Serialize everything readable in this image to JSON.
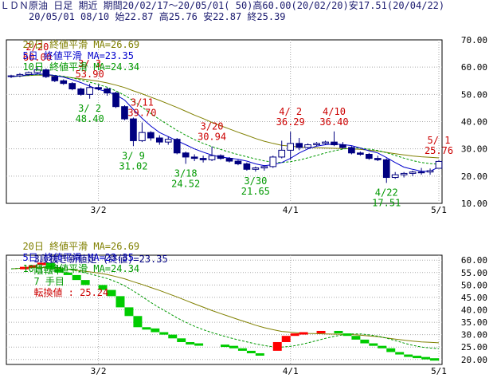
{
  "header": {
    "line1": "ＬＤＮ原油 日足 期近 期間20/02/17～20/05/01( 50)高60.00(20/02/20)安17.51(20/04/22)",
    "line2": "20/05/01 08/10 始22.87 高25.76 安22.87 終25.39"
  },
  "legend": {
    "ma20": "20日 終値平滑 MA=26.69",
    "ma5": "5日 終値平滑 MA=23.35",
    "ma10": "10日 終値平滑 MA=24.34"
  },
  "lower_info": {
    "label": "3段抜き新値足 (終値)=23.35",
    "state": "陰転中",
    "count": "7 手目",
    "reversal": "転換値 : 25.24"
  },
  "colors": {
    "up": "#ffffff",
    "down": "#000080",
    "ma20": "#808000",
    "ma5": "#0000cc",
    "ma10": "#009900",
    "high_label": "#cc0000",
    "low_label": "#009900",
    "kagi_up": "#ff0000",
    "kagi_down": "#00cc00",
    "grid": "#aaaaaa"
  },
  "chart_data": [
    {
      "type": "candlestick",
      "ylim": [
        10,
        70
      ],
      "yticks": [
        "70.00",
        "60.00",
        "50.00",
        "40.00",
        "30.00",
        "20.00",
        "10.00"
      ],
      "ytick_values": [
        70,
        60,
        50,
        40,
        30,
        20,
        10
      ],
      "xticks": [
        {
          "label": "3/2",
          "index": 10
        },
        {
          "label": "4/1",
          "index": 32
        },
        {
          "label": "5/1",
          "index": 49
        }
      ],
      "candles": [
        {
          "o": 56.5,
          "h": 57.2,
          "l": 56.0,
          "c": 56.8
        },
        {
          "o": 56.8,
          "h": 57.8,
          "l": 56.3,
          "c": 57.3
        },
        {
          "o": 57.3,
          "h": 58.4,
          "l": 56.8,
          "c": 58.0
        },
        {
          "o": 58.0,
          "h": 60.0,
          "l": 57.5,
          "c": 59.0
        },
        {
          "o": 59.0,
          "h": 59.5,
          "l": 56.0,
          "c": 56.5
        },
        {
          "o": 56.5,
          "h": 57.0,
          "l": 54.5,
          "c": 55.0
        },
        {
          "o": 55.0,
          "h": 55.5,
          "l": 53.5,
          "c": 54.0
        },
        {
          "o": 54.0,
          "h": 54.5,
          "l": 51.5,
          "c": 52.0
        },
        {
          "o": 52.0,
          "h": 52.5,
          "l": 49.5,
          "c": 50.0
        },
        {
          "o": 50.0,
          "h": 53.9,
          "l": 48.4,
          "c": 52.5
        },
        {
          "o": 52.5,
          "h": 53.5,
          "l": 51.5,
          "c": 52.0
        },
        {
          "o": 52.0,
          "h": 52.5,
          "l": 49.5,
          "c": 50.5
        },
        {
          "o": 50.5,
          "h": 51.0,
          "l": 45.0,
          "c": 45.5
        },
        {
          "o": 45.5,
          "h": 46.0,
          "l": 40.5,
          "c": 41.0
        },
        {
          "o": 41.0,
          "h": 41.5,
          "l": 31.0,
          "c": 33.0
        },
        {
          "o": 33.0,
          "h": 39.7,
          "l": 32.5,
          "c": 36.0
        },
        {
          "o": 36.0,
          "h": 36.5,
          "l": 33.0,
          "c": 34.0
        },
        {
          "o": 34.0,
          "h": 35.0,
          "l": 31.5,
          "c": 32.5
        },
        {
          "o": 32.5,
          "h": 34.5,
          "l": 31.5,
          "c": 33.5
        },
        {
          "o": 33.5,
          "h": 34.0,
          "l": 28.0,
          "c": 28.5
        },
        {
          "o": 28.5,
          "h": 29.0,
          "l": 24.5,
          "c": 27.0
        },
        {
          "o": 27.0,
          "h": 28.0,
          "l": 25.5,
          "c": 26.5
        },
        {
          "o": 26.5,
          "h": 27.5,
          "l": 25.0,
          "c": 26.0
        },
        {
          "o": 26.0,
          "h": 30.9,
          "l": 25.5,
          "c": 27.5
        },
        {
          "o": 27.5,
          "h": 28.0,
          "l": 26.0,
          "c": 26.5
        },
        {
          "o": 26.5,
          "h": 27.0,
          "l": 25.0,
          "c": 25.5
        },
        {
          "o": 25.5,
          "h": 26.0,
          "l": 24.0,
          "c": 24.5
        },
        {
          "o": 24.5,
          "h": 25.0,
          "l": 22.0,
          "c": 22.5
        },
        {
          "o": 22.5,
          "h": 23.5,
          "l": 21.65,
          "c": 23.0
        },
        {
          "o": 23.0,
          "h": 24.0,
          "l": 22.0,
          "c": 23.5
        },
        {
          "o": 23.5,
          "h": 27.5,
          "l": 23.0,
          "c": 27.0
        },
        {
          "o": 27.0,
          "h": 33.0,
          "l": 26.5,
          "c": 29.5
        },
        {
          "o": 29.5,
          "h": 36.29,
          "l": 26.0,
          "c": 32.0
        },
        {
          "o": 32.0,
          "h": 34.0,
          "l": 29.5,
          "c": 30.5
        },
        {
          "o": 30.5,
          "h": 32.0,
          "l": 30.0,
          "c": 31.5
        },
        {
          "o": 31.5,
          "h": 32.5,
          "l": 31.0,
          "c": 32.0
        },
        {
          "o": 32.0,
          "h": 33.0,
          "l": 31.5,
          "c": 32.5
        },
        {
          "o": 32.5,
          "h": 36.4,
          "l": 31.0,
          "c": 31.5
        },
        {
          "o": 31.5,
          "h": 32.5,
          "l": 30.0,
          "c": 30.5
        },
        {
          "o": 30.5,
          "h": 31.0,
          "l": 28.0,
          "c": 28.5
        },
        {
          "o": 28.5,
          "h": 29.0,
          "l": 27.5,
          "c": 28.0
        },
        {
          "o": 28.0,
          "h": 28.5,
          "l": 26.0,
          "c": 26.5
        },
        {
          "o": 26.5,
          "h": 27.5,
          "l": 25.5,
          "c": 26.0
        },
        {
          "o": 26.0,
          "h": 26.5,
          "l": 17.51,
          "c": 19.5
        },
        {
          "o": 19.5,
          "h": 21.5,
          "l": 19.0,
          "c": 20.5
        },
        {
          "o": 20.5,
          "h": 21.5,
          "l": 19.5,
          "c": 21.0
        },
        {
          "o": 21.0,
          "h": 22.0,
          "l": 20.0,
          "c": 21.5
        },
        {
          "o": 21.5,
          "h": 23.0,
          "l": 20.5,
          "c": 21.5
        },
        {
          "o": 21.5,
          "h": 22.8,
          "l": 20.5,
          "c": 22.0
        },
        {
          "o": 22.87,
          "h": 25.76,
          "l": 22.87,
          "c": 25.39
        }
      ],
      "ma20": [
        56.5,
        56.7,
        56.9,
        57.1,
        57.0,
        56.8,
        56.5,
        56.1,
        55.7,
        55.3,
        54.8,
        54.2,
        53.4,
        52.5,
        51.3,
        50.2,
        49.0,
        47.8,
        46.5,
        45.2,
        43.8,
        42.4,
        41.1,
        39.7,
        38.5,
        37.3,
        36.1,
        35.0,
        33.8,
        32.8,
        32.0,
        31.3,
        31.0,
        30.7,
        30.5,
        30.4,
        30.3,
        30.2,
        30.1,
        30.0,
        29.8,
        29.5,
        29.2,
        28.7,
        28.2,
        27.8,
        27.4,
        27.1,
        26.9,
        26.69
      ],
      "ma5": [
        56.5,
        56.8,
        57.2,
        57.5,
        57.4,
        56.9,
        56.3,
        55.4,
        54.3,
        53.0,
        51.8,
        51.0,
        49.8,
        47.9,
        44.5,
        41.2,
        38.4,
        36.0,
        34.5,
        33.0,
        31.5,
        30.0,
        28.8,
        27.7,
        27.0,
        26.6,
        26.2,
        25.5,
        24.5,
        23.8,
        24.2,
        25.0,
        26.5,
        28.5,
        30.0,
        31.0,
        31.5,
        31.8,
        31.6,
        31.2,
        30.3,
        29.3,
        28.5,
        26.8,
        25.0,
        23.3,
        22.5,
        21.8,
        21.8,
        23.35
      ],
      "ma10": [
        56.5,
        56.7,
        57.0,
        57.2,
        57.2,
        57.0,
        56.6,
        56.0,
        55.3,
        54.5,
        53.6,
        52.6,
        51.3,
        49.7,
        47.6,
        45.3,
        43.0,
        40.8,
        38.8,
        36.8,
        35.0,
        33.4,
        32.0,
        30.8,
        29.8,
        28.8,
        27.9,
        27.1,
        26.3,
        25.6,
        25.1,
        25.0,
        25.3,
        25.9,
        26.7,
        27.6,
        28.5,
        29.3,
        29.9,
        30.3,
        30.3,
        29.9,
        29.4,
        28.6,
        27.6,
        26.6,
        25.7,
        25.0,
        24.6,
        24.34
      ],
      "annotations": [
        {
          "index": 3,
          "date": "2/20",
          "value": "60.00",
          "kind": "high"
        },
        {
          "index": 9,
          "date": "3/ 3",
          "value": "53.90",
          "kind": "high"
        },
        {
          "index": 9,
          "date": "3/ 2",
          "value": "48.40",
          "kind": "low"
        },
        {
          "index": 15,
          "date": "3/11",
          "value": "39.70",
          "kind": "high"
        },
        {
          "index": 14,
          "date": "3/ 9",
          "value": "31.02",
          "kind": "low"
        },
        {
          "index": 20,
          "date": "3/18",
          "value": "24.52",
          "kind": "low"
        },
        {
          "index": 23,
          "date": "3/20",
          "value": "30.94",
          "kind": "high"
        },
        {
          "index": 28,
          "date": "3/30",
          "value": "21.65",
          "kind": "low"
        },
        {
          "index": 32,
          "date": "4/ 2",
          "value": "36.29",
          "kind": "high"
        },
        {
          "index": 37,
          "date": "4/10",
          "value": "36.40",
          "kind": "high"
        },
        {
          "index": 43,
          "date": "4/22",
          "value": "17.51",
          "kind": "low"
        },
        {
          "index": 49,
          "date": "5/ 1",
          "value": "25.76",
          "kind": "high"
        }
      ]
    },
    {
      "type": "line-break",
      "ylim": [
        18,
        62
      ],
      "yticks": [
        "60.00",
        "55.00",
        "50.00",
        "45.00",
        "40.00",
        "35.00",
        "30.00",
        "25.00",
        "20.00"
      ],
      "ytick_values": [
        60,
        55,
        50,
        45,
        40,
        35,
        30,
        25,
        20
      ],
      "xticks": [
        {
          "label": "3/2",
          "index": 10
        },
        {
          "label": "4/1",
          "index": 32
        },
        {
          "label": "5/1",
          "index": 49
        }
      ],
      "blocks": [
        {
          "from": 1,
          "to": 2,
          "y0": 56.5,
          "y1": 57.3,
          "dir": "up"
        },
        {
          "from": 2,
          "to": 3,
          "y0": 57.3,
          "y1": 58.0,
          "dir": "up"
        },
        {
          "from": 3,
          "to": 4,
          "y0": 58.0,
          "y1": 59.0,
          "dir": "up"
        },
        {
          "from": 4,
          "to": 5,
          "y0": 59.0,
          "y1": 56.5,
          "dir": "down"
        },
        {
          "from": 5,
          "to": 6,
          "y0": 56.5,
          "y1": 55.0,
          "dir": "down"
        },
        {
          "from": 6,
          "to": 7,
          "y0": 55.0,
          "y1": 54.0,
          "dir": "down"
        },
        {
          "from": 7,
          "to": 8,
          "y0": 54.0,
          "y1": 52.0,
          "dir": "down"
        },
        {
          "from": 8,
          "to": 9,
          "y0": 52.0,
          "y1": 50.0,
          "dir": "down"
        },
        {
          "from": 10,
          "to": 11,
          "y0": 50.0,
          "y1": 48.0,
          "dir": "down"
        },
        {
          "from": 11,
          "to": 12,
          "y0": 48.0,
          "y1": 45.5,
          "dir": "down"
        },
        {
          "from": 12,
          "to": 13,
          "y0": 45.5,
          "y1": 41.0,
          "dir": "down"
        },
        {
          "from": 13,
          "to": 14,
          "y0": 41.0,
          "y1": 37.5,
          "dir": "down"
        },
        {
          "from": 14,
          "to": 15,
          "y0": 37.5,
          "y1": 33.0,
          "dir": "down"
        },
        {
          "from": 15,
          "to": 16,
          "y0": 33.0,
          "y1": 32.5,
          "dir": "down"
        },
        {
          "from": 16,
          "to": 17,
          "y0": 32.5,
          "y1": 31.0,
          "dir": "down"
        },
        {
          "from": 17,
          "to": 18,
          "y0": 31.0,
          "y1": 30.0,
          "dir": "down"
        },
        {
          "from": 18,
          "to": 19,
          "y0": 30.0,
          "y1": 28.5,
          "dir": "down"
        },
        {
          "from": 19,
          "to": 20,
          "y0": 28.5,
          "y1": 27.0,
          "dir": "down"
        },
        {
          "from": 20,
          "to": 21,
          "y0": 27.0,
          "y1": 26.5,
          "dir": "down"
        },
        {
          "from": 21,
          "to": 22,
          "y0": 26.5,
          "y1": 26.0,
          "dir": "down"
        },
        {
          "from": 24,
          "to": 25,
          "y0": 26.0,
          "y1": 25.5,
          "dir": "down"
        },
        {
          "from": 25,
          "to": 26,
          "y0": 25.5,
          "y1": 24.5,
          "dir": "down"
        },
        {
          "from": 26,
          "to": 27,
          "y0": 24.5,
          "y1": 23.5,
          "dir": "down"
        },
        {
          "from": 27,
          "to": 28,
          "y0": 23.5,
          "y1": 22.5,
          "dir": "down"
        },
        {
          "from": 28,
          "to": 29,
          "y0": 22.5,
          "y1": 22.3,
          "dir": "down"
        },
        {
          "from": 30,
          "to": 31,
          "y0": 23.5,
          "y1": 27.0,
          "dir": "up"
        },
        {
          "from": 31,
          "to": 32,
          "y0": 27.0,
          "y1": 29.5,
          "dir": "up"
        },
        {
          "from": 32,
          "to": 33,
          "y0": 29.5,
          "y1": 30.5,
          "dir": "up"
        },
        {
          "from": 33,
          "to": 34,
          "y0": 30.5,
          "y1": 31.0,
          "dir": "up"
        },
        {
          "from": 35,
          "to": 36,
          "y0": 31.0,
          "y1": 31.5,
          "dir": "up"
        },
        {
          "from": 37,
          "to": 38,
          "y0": 31.5,
          "y1": 30.5,
          "dir": "down"
        },
        {
          "from": 38,
          "to": 39,
          "y0": 30.5,
          "y1": 29.5,
          "dir": "down"
        },
        {
          "from": 39,
          "to": 40,
          "y0": 29.5,
          "y1": 28.0,
          "dir": "down"
        },
        {
          "from": 40,
          "to": 41,
          "y0": 28.0,
          "y1": 26.5,
          "dir": "down"
        },
        {
          "from": 41,
          "to": 42,
          "y0": 26.5,
          "y1": 25.5,
          "dir": "down"
        },
        {
          "from": 42,
          "to": 43,
          "y0": 25.5,
          "y1": 24.5,
          "dir": "down"
        },
        {
          "from": 43,
          "to": 44,
          "y0": 24.5,
          "y1": 23.0,
          "dir": "down"
        },
        {
          "from": 44,
          "to": 45,
          "y0": 23.0,
          "y1": 22.0,
          "dir": "down"
        },
        {
          "from": 45,
          "to": 46,
          "y0": 22.0,
          "y1": 21.5,
          "dir": "down"
        },
        {
          "from": 46,
          "to": 47,
          "y0": 21.5,
          "y1": 21.0,
          "dir": "down"
        },
        {
          "from": 47,
          "to": 48,
          "y0": 21.0,
          "y1": 20.5,
          "dir": "down"
        },
        {
          "from": 48,
          "to": 49,
          "y0": 20.5,
          "y1": 20.3,
          "dir": "down"
        }
      ],
      "ma20": [
        56.5,
        56.7,
        56.9,
        57.1,
        57.0,
        56.8,
        56.5,
        56.1,
        55.7,
        55.3,
        54.8,
        54.2,
        53.4,
        52.5,
        51.3,
        50.2,
        49.0,
        47.8,
        46.5,
        45.2,
        43.8,
        42.4,
        41.1,
        39.7,
        38.5,
        37.3,
        36.1,
        35.0,
        33.8,
        32.8,
        32.0,
        31.3,
        31.0,
        30.7,
        30.5,
        30.4,
        30.3,
        30.2,
        30.1,
        30.0,
        29.8,
        29.5,
        29.2,
        28.7,
        28.2,
        27.8,
        27.4,
        27.1,
        26.9,
        26.69
      ],
      "ma10": [
        56.5,
        56.7,
        57.0,
        57.2,
        57.2,
        57.0,
        56.6,
        56.0,
        55.3,
        54.5,
        53.6,
        52.6,
        51.3,
        49.7,
        47.6,
        45.3,
        43.0,
        40.8,
        38.8,
        36.8,
        35.0,
        33.4,
        32.0,
        30.8,
        29.8,
        28.8,
        27.9,
        27.1,
        26.3,
        25.6,
        25.1,
        25.0,
        25.3,
        25.9,
        26.7,
        27.6,
        28.5,
        29.3,
        29.9,
        30.3,
        30.3,
        29.9,
        29.4,
        28.6,
        27.6,
        26.6,
        25.7,
        25.0,
        24.6,
        24.34
      ]
    }
  ]
}
